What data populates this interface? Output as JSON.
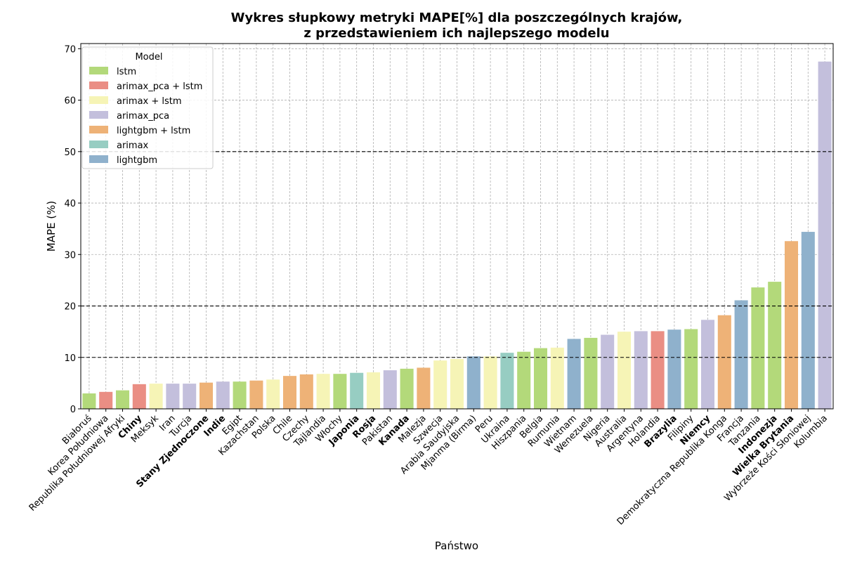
{
  "chart_data": {
    "type": "bar",
    "title_line1": "Wykres słupkowy metryki MAPE[%] dla poszczególnych krajów,",
    "title_line2": "z przedstawieniem ich najlepszego modelu",
    "xlabel": "Państwo",
    "ylabel": "MAPE (%)",
    "ylim": [
      0,
      71
    ],
    "yticks": [
      0,
      10,
      20,
      30,
      40,
      50,
      60,
      70
    ],
    "reference_lines": [
      10,
      20,
      50
    ],
    "grid": true,
    "legend": {
      "title": "Model",
      "placement": "top-left",
      "entries": [
        {
          "name": "lstm",
          "color": "#b3d97a"
        },
        {
          "name": "arimax_pca + lstm",
          "color": "#ea8e84"
        },
        {
          "name": "arimax + lstm",
          "color": "#f6f4b6"
        },
        {
          "name": "arimax_pca",
          "color": "#c3bfdc"
        },
        {
          "name": "lightgbm + lstm",
          "color": "#eeb277"
        },
        {
          "name": "arimax",
          "color": "#97cdc2"
        },
        {
          "name": "lightgbm",
          "color": "#8fb1cc"
        }
      ]
    },
    "bars": [
      {
        "country": "Białoruś",
        "value": 3.0,
        "model": "lstm",
        "bold": false
      },
      {
        "country": "Korea Południowa",
        "value": 3.3,
        "model": "arimax_pca + lstm",
        "bold": false
      },
      {
        "country": "Republika Południowej Afryki",
        "value": 3.6,
        "model": "lstm",
        "bold": false
      },
      {
        "country": "Chiny",
        "value": 4.8,
        "model": "arimax_pca + lstm",
        "bold": true
      },
      {
        "country": "Meksyk",
        "value": 4.9,
        "model": "arimax + lstm",
        "bold": false
      },
      {
        "country": "Iran",
        "value": 4.9,
        "model": "arimax_pca",
        "bold": false
      },
      {
        "country": "Turcja",
        "value": 4.9,
        "model": "arimax_pca",
        "bold": false
      },
      {
        "country": "Stany Zjednoczone",
        "value": 5.1,
        "model": "lightgbm + lstm",
        "bold": true
      },
      {
        "country": "Indie",
        "value": 5.3,
        "model": "arimax_pca",
        "bold": true
      },
      {
        "country": "Egipt",
        "value": 5.3,
        "model": "lstm",
        "bold": false
      },
      {
        "country": "Kazachstan",
        "value": 5.5,
        "model": "lightgbm + lstm",
        "bold": false
      },
      {
        "country": "Polska",
        "value": 5.7,
        "model": "arimax + lstm",
        "bold": false
      },
      {
        "country": "Chile",
        "value": 6.4,
        "model": "lightgbm + lstm",
        "bold": false
      },
      {
        "country": "Czechy",
        "value": 6.7,
        "model": "lightgbm + lstm",
        "bold": false
      },
      {
        "country": "Tajlandia",
        "value": 6.8,
        "model": "arimax + lstm",
        "bold": false
      },
      {
        "country": "Włochy",
        "value": 6.8,
        "model": "lstm",
        "bold": false
      },
      {
        "country": "Japonia",
        "value": 7.0,
        "model": "arimax",
        "bold": true
      },
      {
        "country": "Rosja",
        "value": 7.1,
        "model": "arimax + lstm",
        "bold": true
      },
      {
        "country": "Pakistan",
        "value": 7.5,
        "model": "arimax_pca",
        "bold": false
      },
      {
        "country": "Kanada",
        "value": 7.8,
        "model": "lstm",
        "bold": true
      },
      {
        "country": "Malezja",
        "value": 8.0,
        "model": "lightgbm + lstm",
        "bold": false
      },
      {
        "country": "Szwecja",
        "value": 9.4,
        "model": "arimax + lstm",
        "bold": false
      },
      {
        "country": "Arabia Saudyjska",
        "value": 9.7,
        "model": "arimax + lstm",
        "bold": false
      },
      {
        "country": "Mjanma (Birma)",
        "value": 10.2,
        "model": "lightgbm",
        "bold": false
      },
      {
        "country": "Peru",
        "value": 10.2,
        "model": "arimax + lstm",
        "bold": false
      },
      {
        "country": "Ukraina",
        "value": 10.9,
        "model": "arimax",
        "bold": false
      },
      {
        "country": "Hiszpania",
        "value": 11.1,
        "model": "lstm",
        "bold": false
      },
      {
        "country": "Belgia",
        "value": 11.8,
        "model": "lstm",
        "bold": false
      },
      {
        "country": "Rumunia",
        "value": 11.9,
        "model": "arimax + lstm",
        "bold": false
      },
      {
        "country": "Wietnam",
        "value": 13.6,
        "model": "lightgbm",
        "bold": false
      },
      {
        "country": "Wenezuela",
        "value": 13.8,
        "model": "lstm",
        "bold": false
      },
      {
        "country": "Nigeria",
        "value": 14.4,
        "model": "arimax_pca",
        "bold": false
      },
      {
        "country": "Australia",
        "value": 15.0,
        "model": "arimax + lstm",
        "bold": false
      },
      {
        "country": "Argentyna",
        "value": 15.1,
        "model": "arimax_pca",
        "bold": false
      },
      {
        "country": "Holandia",
        "value": 15.1,
        "model": "arimax_pca + lstm",
        "bold": false
      },
      {
        "country": "Brazylia",
        "value": 15.4,
        "model": "lightgbm",
        "bold": true
      },
      {
        "country": "Filipiny",
        "value": 15.5,
        "model": "lstm",
        "bold": false
      },
      {
        "country": "Niemcy",
        "value": 17.3,
        "model": "arimax_pca",
        "bold": true
      },
      {
        "country": "Demokratyczna Republika Konga",
        "value": 18.2,
        "model": "lightgbm + lstm",
        "bold": false
      },
      {
        "country": "Francja",
        "value": 21.1,
        "model": "lightgbm",
        "bold": false
      },
      {
        "country": "Tanzania",
        "value": 23.6,
        "model": "lstm",
        "bold": false
      },
      {
        "country": "Indonezja",
        "value": 24.7,
        "model": "lstm",
        "bold": true
      },
      {
        "country": "Wielka Brytania",
        "value": 32.6,
        "model": "lightgbm + lstm",
        "bold": true
      },
      {
        "country": "Wybrzeże Kości Słoniowej",
        "value": 34.4,
        "model": "lightgbm",
        "bold": false
      },
      {
        "country": "Kolumbia",
        "value": 67.5,
        "model": "arimax_pca",
        "bold": false
      }
    ]
  }
}
